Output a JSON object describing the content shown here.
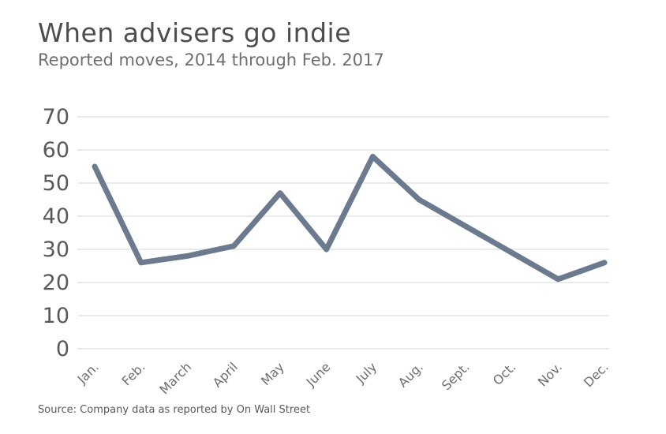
{
  "header": {
    "title": "When advisers go indie",
    "subtitle": "Reported moves, 2014 through Feb. 2017"
  },
  "footer": {
    "source": "Source: Company data as reported by On Wall Street"
  },
  "colors": {
    "line": "#6b7a8e",
    "grid": "#d6d6d6",
    "tick_text": "#58595b",
    "title_text": "#4d4d4f",
    "subtitle_text": "#6d6e71"
  },
  "chart_data": {
    "type": "line",
    "title": "When advisers go indie",
    "subtitle": "Reported moves, 2014 through Feb. 2017",
    "categories": [
      "Jan.",
      "Feb.",
      "March",
      "April",
      "May",
      "June",
      "July",
      "Aug.",
      "Sept.",
      "Oct.",
      "Nov.",
      "Dec."
    ],
    "values": [
      55,
      26,
      28,
      31,
      47,
      30,
      58,
      45,
      37,
      29,
      21,
      26
    ],
    "xlabel": "",
    "ylabel": "",
    "ylim": [
      0,
      70
    ],
    "yticks": [
      0,
      10,
      20,
      30,
      40,
      50,
      60,
      70
    ],
    "grid": true,
    "legend": false,
    "source": "Source: Company data as reported by On Wall Street"
  }
}
